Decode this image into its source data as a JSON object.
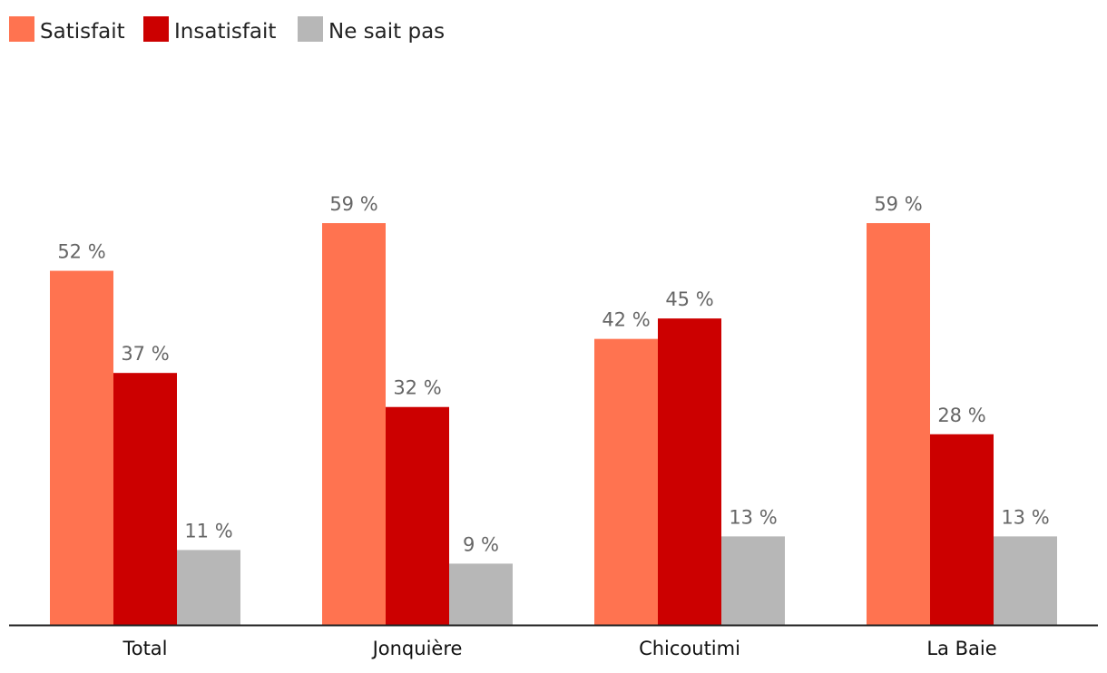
{
  "chart_data": {
    "type": "bar",
    "categories": [
      "Total",
      "Jonquière",
      "Chicoutimi",
      "La Baie"
    ],
    "series": [
      {
        "name": "Satisfait",
        "color": "#ff7350",
        "values": [
          52,
          59,
          42,
          59
        ],
        "labels": [
          "52 %",
          "59 %",
          "42 %",
          "59 %"
        ]
      },
      {
        "name": "Insatisfait",
        "color": "#cc0000",
        "values": [
          37,
          32,
          45,
          28
        ],
        "labels": [
          "37 %",
          "32 %",
          "45 %",
          "28 %"
        ]
      },
      {
        "name": "Ne sait pas",
        "color": "#b7b7b7",
        "values": [
          11,
          9,
          13,
          13
        ],
        "labels": [
          "11 %",
          "9 %",
          "13 %",
          "13 %"
        ]
      }
    ],
    "ylim": [
      0,
      59
    ],
    "grid": false,
    "legend_position": "top-left",
    "axis_color": "#222222"
  }
}
